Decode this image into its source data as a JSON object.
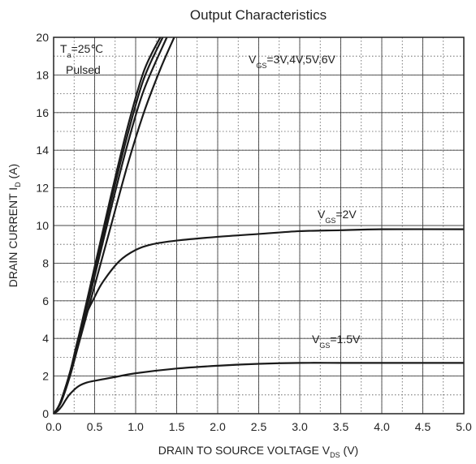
{
  "chart_data": {
    "type": "line",
    "title": "Output Characteristics",
    "xlabel": {
      "main": "DRAIN TO SOURCE VOLTAGE V",
      "sub": "DS",
      "unit": " (V)"
    },
    "ylabel": {
      "main": "DRAIN CURRENT I",
      "sub": "D",
      "unit": " (A)"
    },
    "xlim": [
      0,
      5
    ],
    "ylim": [
      0,
      20
    ],
    "x_ticks": [
      "0.0",
      "0.5",
      "1.0",
      "1.5",
      "2.0",
      "2.5",
      "3.0",
      "3.5",
      "4.0",
      "4.5",
      "5.0"
    ],
    "y_ticks": [
      "0",
      "2",
      "4",
      "6",
      "8",
      "10",
      "12",
      "14",
      "16",
      "18",
      "20"
    ],
    "grid": {
      "major": "solid",
      "minor": "dotted"
    },
    "annotations": {
      "temp": {
        "prefix": "T",
        "sub": "a",
        "value": "=25℃"
      },
      "pulsed": "Pulsed",
      "vgs_high": {
        "prefix": "V",
        "sub": "GS",
        "value": "=3V,4V,5V,6V"
      },
      "vgs_2": {
        "prefix": "V",
        "sub": "GS",
        "value": "=2V"
      },
      "vgs_15": {
        "prefix": "V",
        "sub": "GS",
        "value": "=1.5V"
      }
    },
    "series": [
      {
        "label_ref": "vgs_high",
        "values": [
          [
            0,
            0
          ],
          [
            0.05,
            0.3
          ],
          [
            0.1,
            0.8
          ],
          [
            0.2,
            2.2
          ],
          [
            0.3,
            4.0
          ],
          [
            0.5,
            7.8
          ],
          [
            0.7,
            11.6
          ],
          [
            0.9,
            15.2
          ],
          [
            1.1,
            18.2
          ],
          [
            1.3,
            20.0
          ]
        ]
      },
      {
        "label_ref": "vgs_high",
        "values": [
          [
            0,
            0
          ],
          [
            0.05,
            0.3
          ],
          [
            0.1,
            0.8
          ],
          [
            0.2,
            2.2
          ],
          [
            0.3,
            3.9
          ],
          [
            0.5,
            7.6
          ],
          [
            0.7,
            11.3
          ],
          [
            0.9,
            14.8
          ],
          [
            1.1,
            17.8
          ],
          [
            1.33,
            20.0
          ]
        ]
      },
      {
        "label_ref": "vgs_high",
        "values": [
          [
            0,
            0
          ],
          [
            0.05,
            0.3
          ],
          [
            0.1,
            0.8
          ],
          [
            0.2,
            2.1
          ],
          [
            0.3,
            3.8
          ],
          [
            0.5,
            7.3
          ],
          [
            0.7,
            10.9
          ],
          [
            0.9,
            14.3
          ],
          [
            1.1,
            17.2
          ],
          [
            1.38,
            20.0
          ]
        ]
      },
      {
        "label_ref": "vgs_high",
        "values": [
          [
            0,
            0
          ],
          [
            0.05,
            0.3
          ],
          [
            0.1,
            0.7
          ],
          [
            0.2,
            2.0
          ],
          [
            0.3,
            3.6
          ],
          [
            0.5,
            6.8
          ],
          [
            0.7,
            10.0
          ],
          [
            0.9,
            13.2
          ],
          [
            1.1,
            16.0
          ],
          [
            1.3,
            18.3
          ],
          [
            1.47,
            20.0
          ]
        ]
      },
      {
        "label_ref": "vgs_2",
        "values": [
          [
            0,
            0
          ],
          [
            0.05,
            0.3
          ],
          [
            0.1,
            0.8
          ],
          [
            0.2,
            2.2
          ],
          [
            0.3,
            4.0
          ],
          [
            0.4,
            5.3
          ],
          [
            0.5,
            6.2
          ],
          [
            0.6,
            7.0
          ],
          [
            0.8,
            8.1
          ],
          [
            1.0,
            8.7
          ],
          [
            1.2,
            9.0
          ],
          [
            1.5,
            9.2
          ],
          [
            2.0,
            9.4
          ],
          [
            2.5,
            9.55
          ],
          [
            3.0,
            9.7
          ],
          [
            3.5,
            9.75
          ],
          [
            4.0,
            9.8
          ],
          [
            5.0,
            9.8
          ]
        ]
      },
      {
        "label_ref": "vgs_15",
        "values": [
          [
            0,
            0
          ],
          [
            0.05,
            0.15
          ],
          [
            0.1,
            0.4
          ],
          [
            0.15,
            0.75
          ],
          [
            0.2,
            1.05
          ],
          [
            0.3,
            1.45
          ],
          [
            0.4,
            1.65
          ],
          [
            0.5,
            1.75
          ],
          [
            0.75,
            1.95
          ],
          [
            1.0,
            2.15
          ],
          [
            1.5,
            2.4
          ],
          [
            2.0,
            2.55
          ],
          [
            2.5,
            2.65
          ],
          [
            3.0,
            2.7
          ],
          [
            3.5,
            2.7
          ],
          [
            4.0,
            2.7
          ],
          [
            5.0,
            2.7
          ]
        ]
      }
    ]
  }
}
